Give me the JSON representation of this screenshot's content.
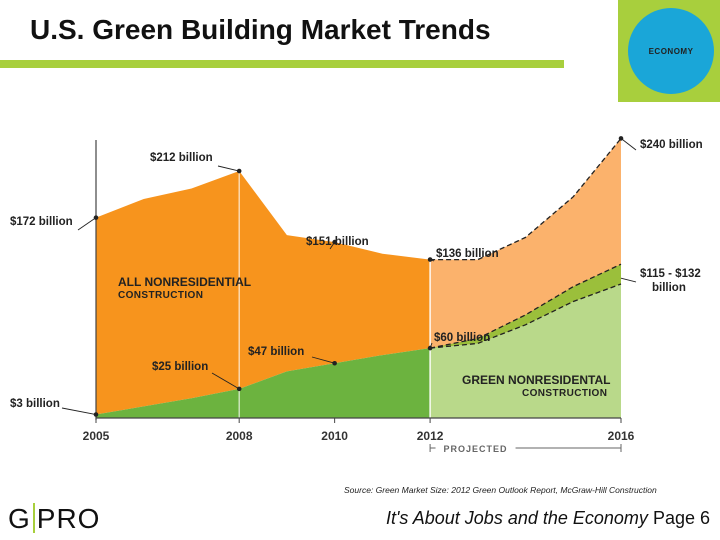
{
  "title": "U.S. Green Building Market Trends",
  "badge": {
    "text": "ECONOMY"
  },
  "source": "Source: Green Market Size: 2012 Green Outlook Report, McGraw-Hill Construction",
  "logo": {
    "left": "G",
    "right": "PRO"
  },
  "footer": {
    "italic": "It's About Jobs and the Economy",
    "page": "Page 6"
  },
  "colors": {
    "accent_green": "#a8cf3d",
    "badge_blue": "#1aa6d8",
    "total_actual": "#f7941d",
    "total_projected": "#fbb26c",
    "green_actual": "#6cb33f",
    "green_projected": "#b9d98a",
    "green_band": "#9bbf3b"
  },
  "chart_data": {
    "type": "area",
    "x_ticks": [
      "2005",
      "2008",
      "2010",
      "2012",
      "2016"
    ],
    "projected_label": "PROJECTED",
    "projected_from": 2012,
    "xlim": [
      2005,
      2016
    ],
    "series": [
      {
        "key": "total",
        "name": "ALL NONRESIDENTIAL CONSTRUCTION",
        "values": [
          [
            2005,
            172
          ],
          [
            2006,
            188
          ],
          [
            2007,
            197
          ],
          [
            2008,
            212
          ],
          [
            2009,
            157
          ],
          [
            2010,
            151
          ],
          [
            2011,
            141
          ],
          [
            2012,
            136
          ],
          [
            2013,
            136
          ],
          [
            2014,
            155
          ],
          [
            2015,
            190
          ],
          [
            2016,
            240
          ]
        ]
      },
      {
        "key": "green",
        "name": "GREEN NONRESIDENTAL CONSTRUCTION",
        "values": [
          [
            2005,
            3
          ],
          [
            2006,
            10
          ],
          [
            2007,
            17
          ],
          [
            2008,
            25
          ],
          [
            2009,
            40
          ],
          [
            2010,
            47
          ],
          [
            2011,
            54
          ],
          [
            2012,
            60
          ],
          [
            2013,
            64
          ],
          [
            2014,
            80
          ],
          [
            2015,
            100
          ],
          [
            2016,
            115
          ]
        ],
        "range_2016": [
          115,
          132
        ]
      }
    ],
    "annotations": [
      {
        "text": "$172 billion",
        "x": 2005,
        "y": 172
      },
      {
        "text": "$212 billion",
        "x": 2008,
        "y": 212
      },
      {
        "text": "$151 billion",
        "x": 2010,
        "y": 151
      },
      {
        "text": "$136 billion",
        "x": 2012,
        "y": 136
      },
      {
        "text": "$240 billion",
        "x": 2016,
        "y": 240
      },
      {
        "text": "$3 billion",
        "x": 2005,
        "y": 3
      },
      {
        "text": "$25 billion",
        "x": 2008,
        "y": 25
      },
      {
        "text": "$47 billion",
        "x": 2010,
        "y": 47
      },
      {
        "text": "$60 billion",
        "x": 2012,
        "y": 60
      },
      {
        "text": "$115 - $132",
        "x": 2016,
        "y": 120
      },
      {
        "text": "billion",
        "x": 2016,
        "y": 120
      }
    ],
    "area_labels": {
      "total": [
        "ALL NONRESIDENTIAL",
        "CONSTRUCTION"
      ],
      "green": [
        "GREEN NONRESIDENTAL",
        "CONSTRUCTION"
      ]
    }
  }
}
